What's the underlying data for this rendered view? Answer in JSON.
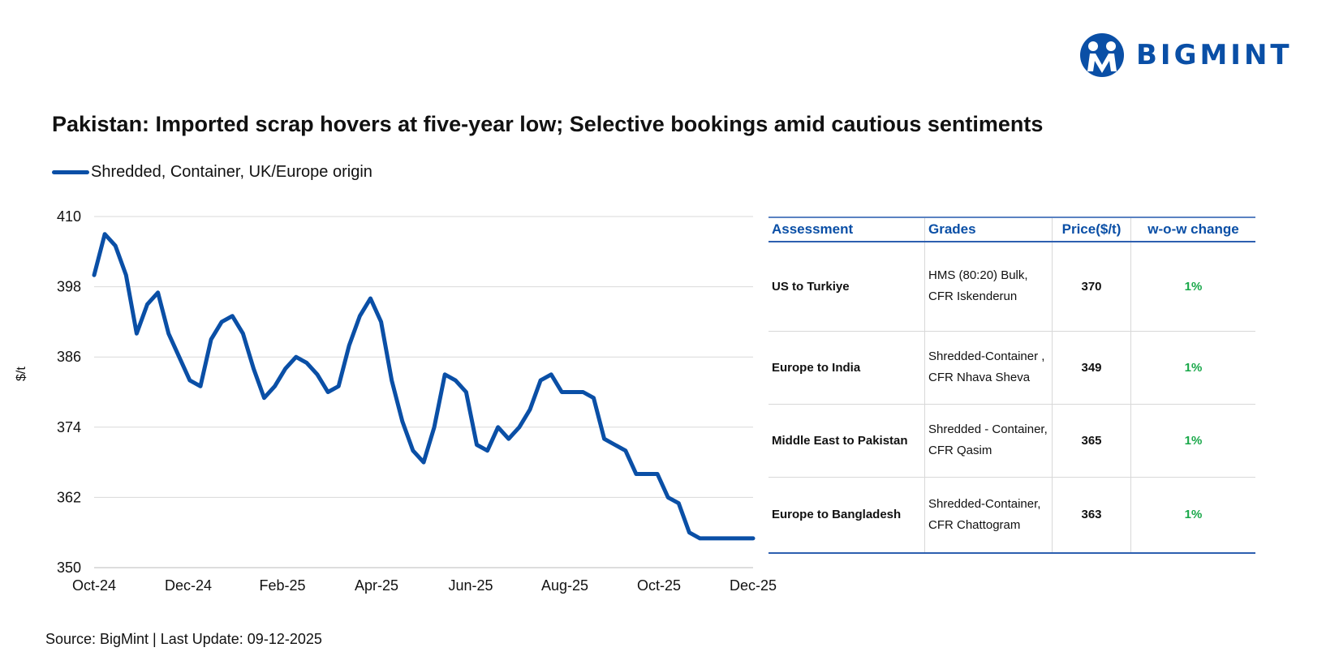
{
  "brand": {
    "name": "BIGMINT",
    "color": "#0a4fa6"
  },
  "title": "Pakistan: Imported scrap hovers at five-year low; Selective bookings amid cautious sentiments",
  "source": "Source: BigMint | Last Update: 09-12-2025",
  "chart_data": {
    "type": "line",
    "title": "Pakistan: Imported scrap hovers at five-year low; Selective bookings amid cautious sentiments",
    "ylabel": "$/t",
    "ylim": [
      350,
      410
    ],
    "yticks": [
      350,
      362,
      374,
      386,
      398,
      410
    ],
    "xtick_labels": [
      "Oct-24",
      "Dec-24",
      "Feb-25",
      "Apr-25",
      "Jun-25",
      "Aug-25",
      "Oct-25",
      "Dec-25"
    ],
    "grid": true,
    "legend_position": "top-left",
    "series": [
      {
        "name": "Shredded, Container, UK/Europe origin",
        "color": "#0a4fa6",
        "values": [
          400,
          407,
          405,
          400,
          390,
          395,
          397,
          390,
          386,
          382,
          381,
          389,
          392,
          393,
          390,
          384,
          379,
          381,
          384,
          386,
          385,
          383,
          380,
          381,
          388,
          393,
          396,
          392,
          382,
          375,
          370,
          368,
          374,
          383,
          382,
          380,
          371,
          370,
          374,
          372,
          374,
          377,
          382,
          383,
          380,
          380,
          380,
          379,
          372,
          371,
          370,
          366,
          366,
          366,
          362,
          361,
          356,
          355,
          355,
          355,
          355,
          355,
          355
        ]
      }
    ]
  },
  "table": {
    "headers": [
      "Assessment",
      "Grades",
      "Price($/t)",
      "w-o-w change"
    ],
    "rows": [
      {
        "assessment": "US to Turkiye",
        "grade_line1": "HMS (80:20) Bulk,",
        "grade_line2": "CFR Iskenderun",
        "price": "370",
        "change": "1%"
      },
      {
        "assessment": "Europe to India",
        "grade_line1": "Shredded-Container ,",
        "grade_line2": "CFR Nhava Sheva",
        "price": "349",
        "change": "1%"
      },
      {
        "assessment": "Middle East to Pakistan",
        "grade_line1": "Shredded - Container,",
        "grade_line2": "CFR Qasim",
        "price": "365",
        "change": "1%"
      },
      {
        "assessment": "Europe to Bangladesh",
        "grade_line1": "Shredded-Container,",
        "grade_line2": "CFR Chattogram",
        "price": "363",
        "change": "1%"
      }
    ]
  }
}
